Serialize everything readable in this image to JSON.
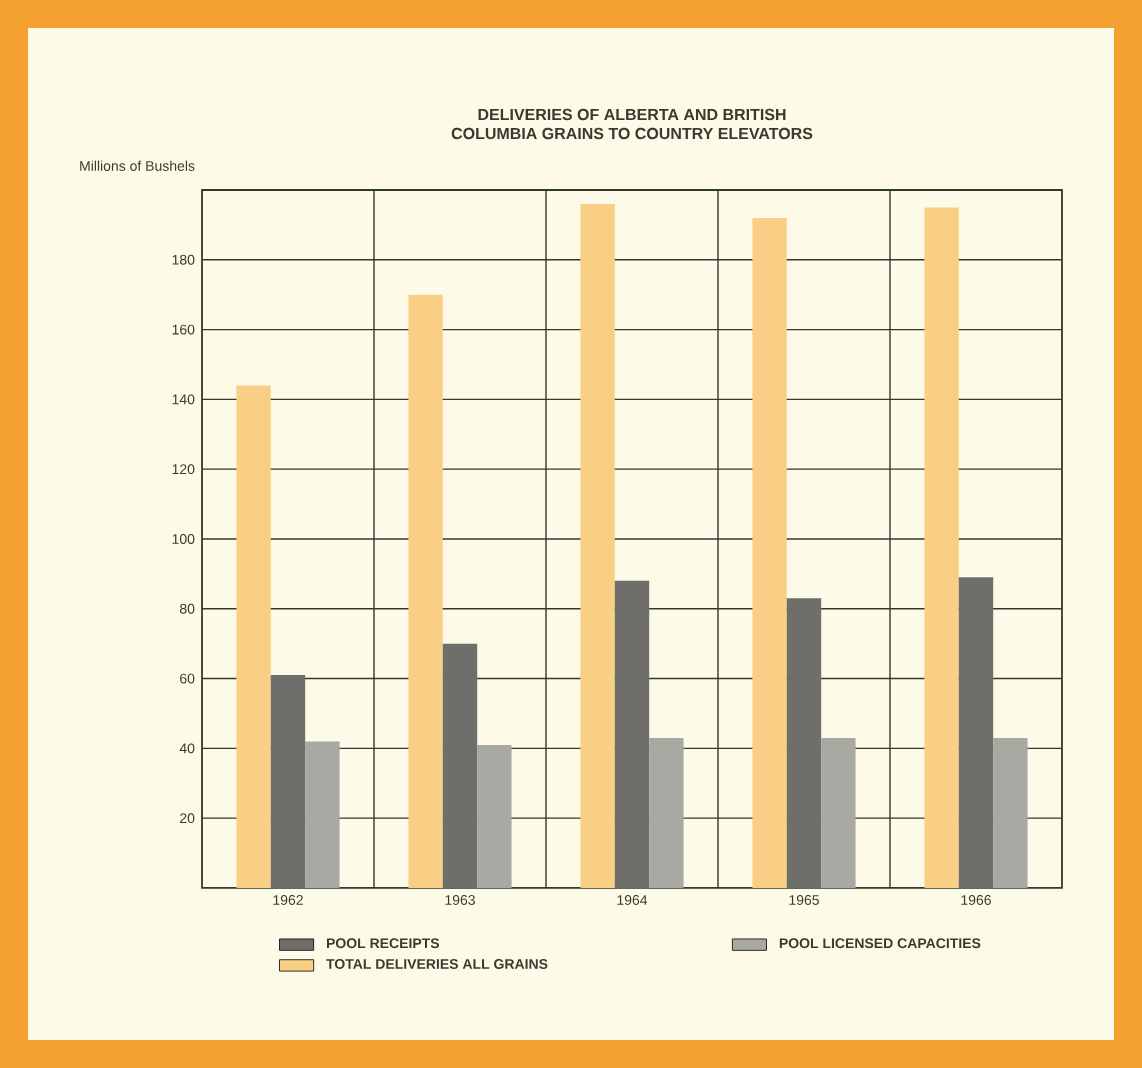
{
  "chart_data": {
    "type": "bar",
    "title": "DELIVERIES OF ALBERTA AND BRITISH\nCOLUMBIA GRAINS TO COUNTRY ELEVATORS",
    "ylabel": "Millions of Bushels",
    "categories": [
      "1962",
      "1963",
      "1964",
      "1965",
      "1966"
    ],
    "series": [
      {
        "name": "TOTAL DELIVERIES ALL GRAINS",
        "color": "#f8cf85",
        "values": [
          144,
          170,
          196,
          192,
          195
        ]
      },
      {
        "name": "POOL RECEIPTS",
        "color": "#6e6e6a",
        "values": [
          61,
          70,
          88,
          83,
          89
        ]
      },
      {
        "name": "POOL LICENSED CAPACITIES",
        "color": "#a9a9a4",
        "values": [
          42,
          41,
          43,
          43,
          43
        ]
      }
    ],
    "ylim": [
      0,
      200
    ],
    "yticks": [
      20,
      40,
      60,
      80,
      100,
      120,
      140,
      160,
      180
    ],
    "grid": true,
    "legend": "bottom"
  }
}
